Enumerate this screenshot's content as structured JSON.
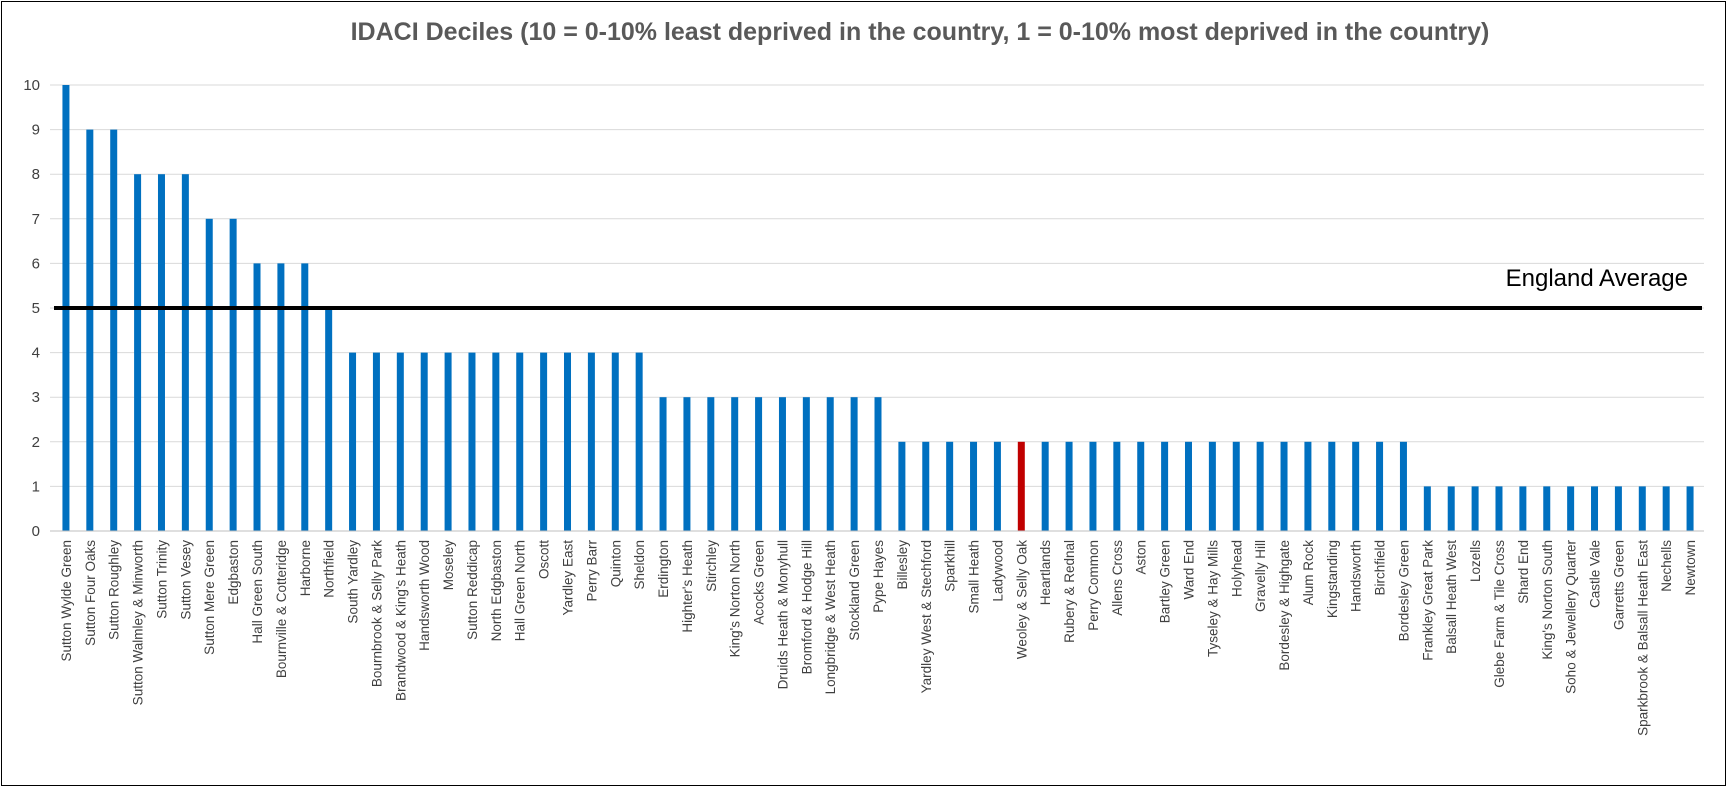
{
  "chart_data": {
    "type": "bar",
    "title": "IDACI Deciles (10 = 0-10% least deprived in the country, 1 = 0-10% most deprived in the country)",
    "ylim": [
      0,
      10
    ],
    "yticks": [
      0,
      1,
      2,
      3,
      4,
      5,
      6,
      7,
      8,
      9,
      10
    ],
    "grid": true,
    "colors": {
      "bar": "#0070c0",
      "highlight": "#c00000",
      "reference": "#000000",
      "grid": "#d9d9d9"
    },
    "highlight_category": "Weoley & Selly Oak",
    "reference_line": {
      "label": "England Average",
      "value": 5
    },
    "categories": [
      "Sutton Wylde Green",
      "Sutton Four Oaks",
      "Sutton Roughley",
      "Sutton Walmley & Minworth",
      "Sutton Trinity",
      "Sutton Vesey",
      "Sutton Mere Green",
      "Edgbaston",
      "Hall Green South",
      "Bournville & Cotteridge",
      "Harborne",
      "Northfield",
      "South Yardley",
      "Bournbrook & Selly Park",
      "Brandwood & King's Heath",
      "Handsworth Wood",
      "Moseley",
      "Sutton Reddicap",
      "North Edgbaston",
      "Hall Green North",
      "Oscott",
      "Yardley East",
      "Perry Barr",
      "Quinton",
      "Sheldon",
      "Erdington",
      "Highter's Heath",
      "Stirchley",
      "King's Norton North",
      "Acocks Green",
      "Druids Heath & Monyhull",
      "Bromford & Hodge Hill",
      "Longbridge & West Heath",
      "Stockland Green",
      "Pype Hayes",
      "Billesley",
      "Yardley West & Stechford",
      "Sparkhill",
      "Small Heath",
      "Ladywood",
      "Weoley & Selly Oak",
      "Heartlands",
      "Rubery & Rednal",
      "Perry Common",
      "Allens Cross",
      "Aston",
      "Bartley Green",
      "Ward End",
      "Tyseley & Hay Mills",
      "Holyhead",
      "Gravelly Hill",
      "Bordesley & Highgate",
      "Alum Rock",
      "Kingstanding",
      "Handsworth",
      "Birchfield",
      "Bordesley Green",
      "Frankley Great Park",
      "Balsall Heath West",
      "Lozells",
      "Glebe Farm & Tile Cross",
      "Shard End",
      "King's Norton South",
      "Soho & Jewellery Quarter",
      "Castle Vale",
      "Garretts Green",
      "Sparkbrook & Balsall Heath East",
      "Nechells",
      "Newtown"
    ],
    "values": [
      10,
      9,
      9,
      8,
      8,
      8,
      7,
      7,
      6,
      6,
      6,
      5,
      4,
      4,
      4,
      4,
      4,
      4,
      4,
      4,
      4,
      4,
      4,
      4,
      4,
      3,
      3,
      3,
      3,
      3,
      3,
      3,
      3,
      3,
      3,
      2,
      2,
      2,
      2,
      2,
      2,
      2,
      2,
      2,
      2,
      2,
      2,
      2,
      2,
      2,
      2,
      2,
      2,
      2,
      2,
      2,
      2,
      1,
      1,
      1,
      1,
      1,
      1,
      1,
      1,
      1,
      1,
      1,
      1
    ]
  }
}
